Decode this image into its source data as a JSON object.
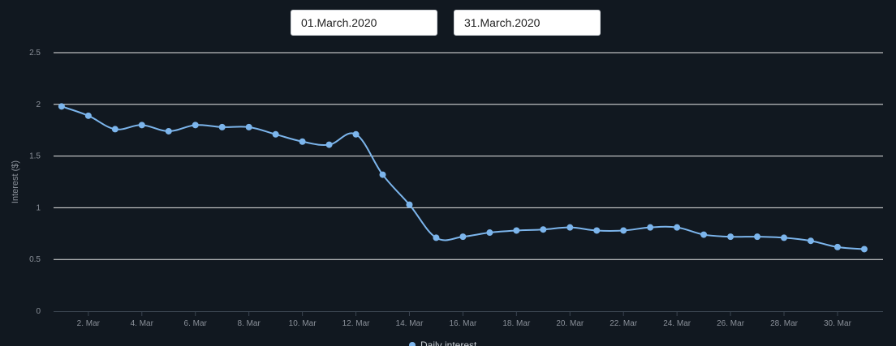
{
  "date_range": {
    "start": "01.March.2020",
    "end": "31.March.2020"
  },
  "colors": {
    "background": "#111820",
    "series": "#7cb5ec",
    "grid": "#e6e6e6",
    "tick_text": "#8a9099"
  },
  "chart_data": {
    "type": "line",
    "ylabel": "Interest ($)",
    "ylim": [
      0,
      2.5
    ],
    "yticks": [
      "0",
      "0.5",
      "1",
      "1.5",
      "2",
      "2.5"
    ],
    "xlim": [
      "2020-03-01",
      "2020-03-31"
    ],
    "xticks": [
      {
        "date": "2020-03-02",
        "label": "2. Mar"
      },
      {
        "date": "2020-03-04",
        "label": "4. Mar"
      },
      {
        "date": "2020-03-06",
        "label": "6. Mar"
      },
      {
        "date": "2020-03-08",
        "label": "8. Mar"
      },
      {
        "date": "2020-03-10",
        "label": "10. Mar"
      },
      {
        "date": "2020-03-12",
        "label": "12. Mar"
      },
      {
        "date": "2020-03-14",
        "label": "14. Mar"
      },
      {
        "date": "2020-03-16",
        "label": "16. Mar"
      },
      {
        "date": "2020-03-18",
        "label": "18. Mar"
      },
      {
        "date": "2020-03-20",
        "label": "20. Mar"
      },
      {
        "date": "2020-03-22",
        "label": "22. Mar"
      },
      {
        "date": "2020-03-24",
        "label": "24. Mar"
      },
      {
        "date": "2020-03-26",
        "label": "26. Mar"
      },
      {
        "date": "2020-03-28",
        "label": "28. Mar"
      },
      {
        "date": "2020-03-30",
        "label": "30. Mar"
      }
    ],
    "grid": true,
    "legend": "bottom",
    "series": [
      {
        "name": "Daily interest",
        "points": [
          {
            "x": "2020-03-01",
            "y": 1.98
          },
          {
            "x": "2020-03-02",
            "y": 1.89
          },
          {
            "x": "2020-03-03",
            "y": 1.76
          },
          {
            "x": "2020-03-04",
            "y": 1.8
          },
          {
            "x": "2020-03-05",
            "y": 1.74
          },
          {
            "x": "2020-03-06",
            "y": 1.8
          },
          {
            "x": "2020-03-07",
            "y": 1.78
          },
          {
            "x": "2020-03-08",
            "y": 1.78
          },
          {
            "x": "2020-03-09",
            "y": 1.71
          },
          {
            "x": "2020-03-10",
            "y": 1.64
          },
          {
            "x": "2020-03-11",
            "y": 1.61
          },
          {
            "x": "2020-03-12",
            "y": 1.71
          },
          {
            "x": "2020-03-13",
            "y": 1.32
          },
          {
            "x": "2020-03-14",
            "y": 1.03
          },
          {
            "x": "2020-03-15",
            "y": 0.71
          },
          {
            "x": "2020-03-16",
            "y": 0.72
          },
          {
            "x": "2020-03-17",
            "y": 0.76
          },
          {
            "x": "2020-03-18",
            "y": 0.78
          },
          {
            "x": "2020-03-19",
            "y": 0.79
          },
          {
            "x": "2020-03-20",
            "y": 0.81
          },
          {
            "x": "2020-03-21",
            "y": 0.78
          },
          {
            "x": "2020-03-22",
            "y": 0.78
          },
          {
            "x": "2020-03-23",
            "y": 0.81
          },
          {
            "x": "2020-03-24",
            "y": 0.81
          },
          {
            "x": "2020-03-25",
            "y": 0.74
          },
          {
            "x": "2020-03-26",
            "y": 0.72
          },
          {
            "x": "2020-03-27",
            "y": 0.72
          },
          {
            "x": "2020-03-28",
            "y": 0.71
          },
          {
            "x": "2020-03-29",
            "y": 0.68
          },
          {
            "x": "2020-03-30",
            "y": 0.62
          },
          {
            "x": "2020-03-31",
            "y": 0.6
          }
        ]
      }
    ]
  }
}
